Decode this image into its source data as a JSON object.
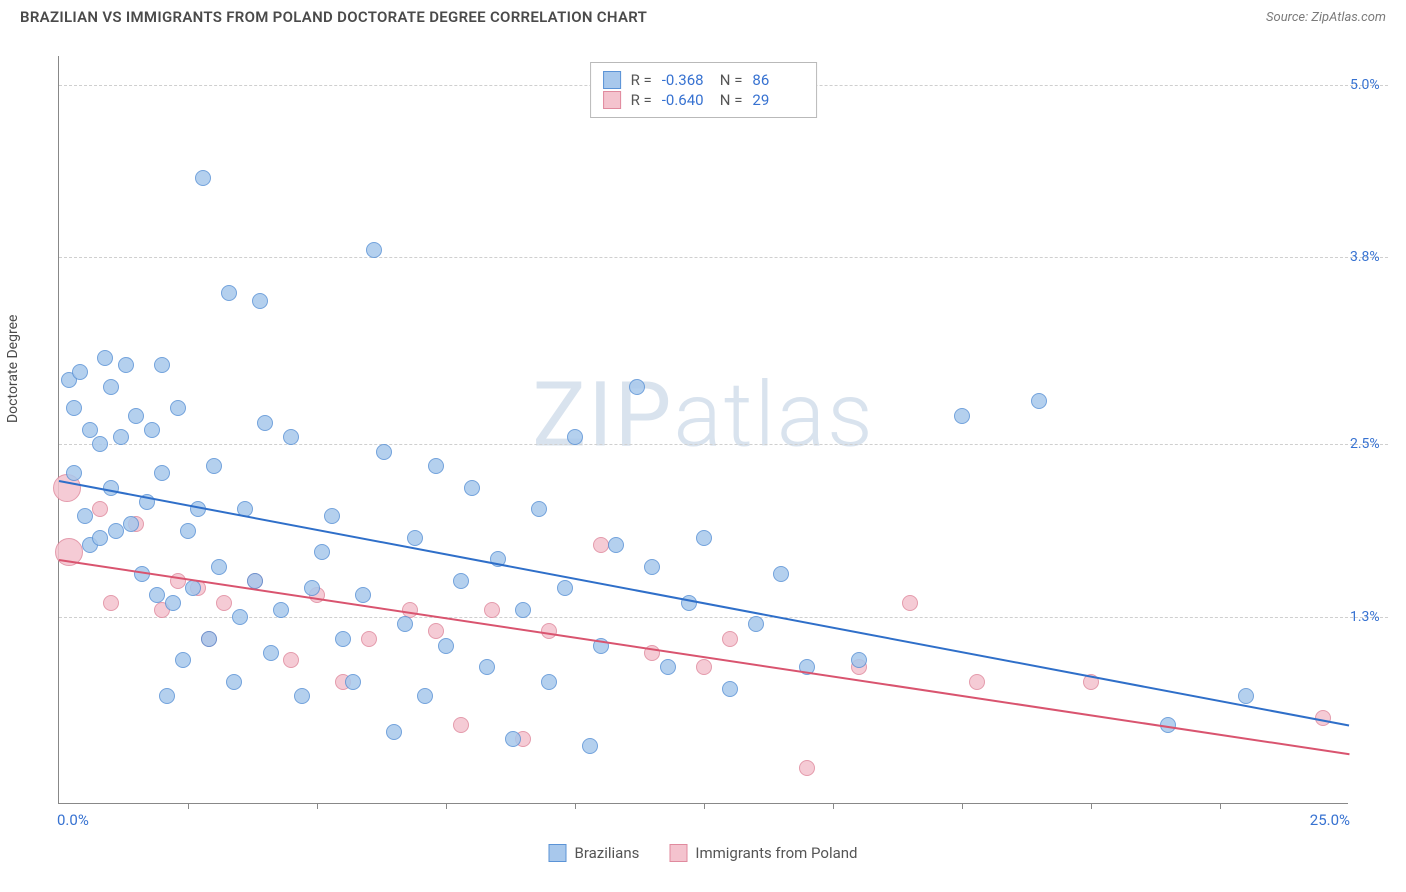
{
  "title": "BRAZILIAN VS IMMIGRANTS FROM POLAND DOCTORATE DEGREE CORRELATION CHART",
  "source": "Source: ZipAtlas.com",
  "y_axis_label": "Doctorate Degree",
  "watermark": {
    "part1": "ZIP",
    "part2": "atlas"
  },
  "chart": {
    "type": "scatter",
    "xlim": [
      0,
      25
    ],
    "ylim": [
      0,
      5.2
    ],
    "x_min_label": "0.0%",
    "x_max_label": "25.0%",
    "x_ticks_at": [
      2.5,
      5,
      7.5,
      10,
      12.5,
      15,
      17.5,
      20,
      22.5
    ],
    "y_gridlines": [
      {
        "y": 1.3,
        "label": "1.3%"
      },
      {
        "y": 2.5,
        "label": "2.5%"
      },
      {
        "y": 3.8,
        "label": "3.8%"
      },
      {
        "y": 5.0,
        "label": "5.0%"
      }
    ],
    "background_color": "#ffffff",
    "grid_color": "#cfcfcf",
    "axis_color": "#888888",
    "label_color": "#3772d1",
    "title_color": "#4a4a4a",
    "marker_radius": 8,
    "fill_opacity": 0.35,
    "series": {
      "brazilians": {
        "label": "Brazilians",
        "color_fill": "#a8c8ec",
        "color_stroke": "#5b93d6",
        "line_color": "#2f6fc9",
        "R": "-0.368",
        "N": "86",
        "trend": {
          "x1": 0,
          "y1": 2.25,
          "x2": 25,
          "y2": 0.55
        },
        "points": [
          [
            0.2,
            2.95
          ],
          [
            0.3,
            2.75
          ],
          [
            0.4,
            3.0
          ],
          [
            0.3,
            2.3
          ],
          [
            0.5,
            2.0
          ],
          [
            0.6,
            2.6
          ],
          [
            0.6,
            1.8
          ],
          [
            0.8,
            2.5
          ],
          [
            0.8,
            1.85
          ],
          [
            0.9,
            3.1
          ],
          [
            1.0,
            2.9
          ],
          [
            1.0,
            2.2
          ],
          [
            1.1,
            1.9
          ],
          [
            1.2,
            2.55
          ],
          [
            1.3,
            3.05
          ],
          [
            1.4,
            1.95
          ],
          [
            1.5,
            2.7
          ],
          [
            1.6,
            1.6
          ],
          [
            1.7,
            2.1
          ],
          [
            1.8,
            2.6
          ],
          [
            1.9,
            1.45
          ],
          [
            2.0,
            2.3
          ],
          [
            2.0,
            3.05
          ],
          [
            2.1,
            0.75
          ],
          [
            2.2,
            1.4
          ],
          [
            2.3,
            2.75
          ],
          [
            2.4,
            1.0
          ],
          [
            2.5,
            1.9
          ],
          [
            2.6,
            1.5
          ],
          [
            2.7,
            2.05
          ],
          [
            2.8,
            4.35
          ],
          [
            2.9,
            1.15
          ],
          [
            3.0,
            2.35
          ],
          [
            3.1,
            1.65
          ],
          [
            3.3,
            3.55
          ],
          [
            3.4,
            0.85
          ],
          [
            3.5,
            1.3
          ],
          [
            3.6,
            2.05
          ],
          [
            3.8,
            1.55
          ],
          [
            3.9,
            3.5
          ],
          [
            4.0,
            2.65
          ],
          [
            4.1,
            1.05
          ],
          [
            4.3,
            1.35
          ],
          [
            4.5,
            2.55
          ],
          [
            4.7,
            0.75
          ],
          [
            4.9,
            1.5
          ],
          [
            5.1,
            1.75
          ],
          [
            5.3,
            2.0
          ],
          [
            5.5,
            1.15
          ],
          [
            5.7,
            0.85
          ],
          [
            5.9,
            1.45
          ],
          [
            6.1,
            3.85
          ],
          [
            6.3,
            2.45
          ],
          [
            6.5,
            0.5
          ],
          [
            6.7,
            1.25
          ],
          [
            6.9,
            1.85
          ],
          [
            7.1,
            0.75
          ],
          [
            7.3,
            2.35
          ],
          [
            7.5,
            1.1
          ],
          [
            7.8,
            1.55
          ],
          [
            8.0,
            2.2
          ],
          [
            8.3,
            0.95
          ],
          [
            8.5,
            1.7
          ],
          [
            8.8,
            0.45
          ],
          [
            9.0,
            1.35
          ],
          [
            9.3,
            2.05
          ],
          [
            9.5,
            0.85
          ],
          [
            9.8,
            1.5
          ],
          [
            10.0,
            2.55
          ],
          [
            10.3,
            0.4
          ],
          [
            10.5,
            1.1
          ],
          [
            10.8,
            1.8
          ],
          [
            11.2,
            2.9
          ],
          [
            11.5,
            1.65
          ],
          [
            11.8,
            0.95
          ],
          [
            12.2,
            1.4
          ],
          [
            12.5,
            1.85
          ],
          [
            13.0,
            0.8
          ],
          [
            13.5,
            1.25
          ],
          [
            14.0,
            1.6
          ],
          [
            14.5,
            0.95
          ],
          [
            15.5,
            1.0
          ],
          [
            17.5,
            2.7
          ],
          [
            19.0,
            2.8
          ],
          [
            21.5,
            0.55
          ],
          [
            23.0,
            0.75
          ]
        ]
      },
      "poland": {
        "label": "Immigrants from Poland",
        "color_fill": "#f4c3ce",
        "color_stroke": "#e08a9e",
        "line_color": "#d9546f",
        "R": "-0.640",
        "N": "29",
        "trend": {
          "x1": 0,
          "y1": 1.7,
          "x2": 25,
          "y2": 0.35
        },
        "large_points": [
          {
            "x": 0.15,
            "y": 2.2,
            "r": 14
          },
          {
            "x": 0.2,
            "y": 1.75,
            "r": 14
          }
        ],
        "points": [
          [
            0.8,
            2.05
          ],
          [
            1.0,
            1.4
          ],
          [
            1.5,
            1.95
          ],
          [
            2.0,
            1.35
          ],
          [
            2.3,
            1.55
          ],
          [
            2.7,
            1.5
          ],
          [
            2.9,
            1.15
          ],
          [
            3.2,
            1.4
          ],
          [
            3.8,
            1.55
          ],
          [
            4.5,
            1.0
          ],
          [
            5.0,
            1.45
          ],
          [
            5.5,
            0.85
          ],
          [
            6.0,
            1.15
          ],
          [
            6.8,
            1.35
          ],
          [
            7.3,
            1.2
          ],
          [
            7.8,
            0.55
          ],
          [
            8.4,
            1.35
          ],
          [
            9.0,
            0.45
          ],
          [
            9.5,
            1.2
          ],
          [
            10.5,
            1.8
          ],
          [
            11.5,
            1.05
          ],
          [
            12.5,
            0.95
          ],
          [
            13.0,
            1.15
          ],
          [
            14.5,
            0.25
          ],
          [
            15.5,
            0.95
          ],
          [
            16.5,
            1.4
          ],
          [
            17.8,
            0.85
          ],
          [
            20.0,
            0.85
          ],
          [
            24.5,
            0.6
          ]
        ]
      }
    }
  }
}
